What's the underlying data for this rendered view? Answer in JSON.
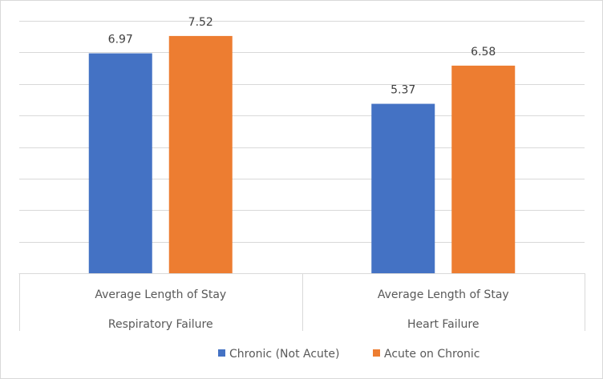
{
  "chart_data": {
    "type": "bar",
    "title": "",
    "xlabel": "",
    "ylabel": "",
    "ylim": [
      0,
      8
    ],
    "grid": true,
    "legend_position": "bottom",
    "categories": [
      {
        "group": "Respiratory Failure",
        "label": "Average Length of Stay"
      },
      {
        "group": "Heart Failure",
        "label": "Average Length of Stay"
      }
    ],
    "series": [
      {
        "name": "Chronic (Not Acute)",
        "color": "#4472c4",
        "values": [
          6.97,
          5.37
        ]
      },
      {
        "name": "Acute on Chronic",
        "color": "#ed7d31",
        "values": [
          7.52,
          6.58
        ]
      }
    ],
    "data_labels": [
      [
        "6.97",
        "5.37"
      ],
      [
        "7.52",
        "6.58"
      ]
    ]
  }
}
